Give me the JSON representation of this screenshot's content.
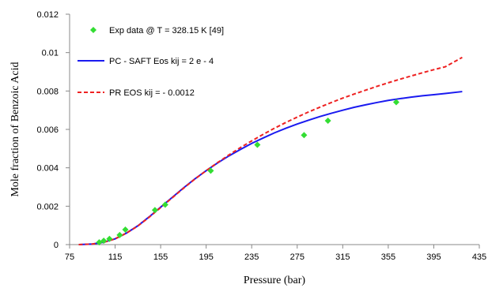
{
  "chart_data": {
    "type": "scatter",
    "title": "",
    "xlabel": "Pressure (bar)",
    "ylabel": "Mole fraction of Benzoic Acid",
    "xlim": [
      75,
      435
    ],
    "ylim": [
      0,
      0.012
    ],
    "x_ticks": [
      "75",
      "115",
      "155",
      "195",
      "235",
      "275",
      "315",
      "355",
      "395",
      "435"
    ],
    "y_ticks": [
      "0",
      "0.002",
      "0.004",
      "0.006",
      "0.008",
      "0.01",
      "0.012"
    ],
    "grid": false,
    "legend_position": "top-left",
    "series": [
      {
        "name": "Exp data @ T = 328.15 K [49]",
        "kind": "markers",
        "color": "#33dd33",
        "x": [
          101,
          105,
          110,
          119,
          124,
          150,
          159,
          199,
          240,
          281,
          302,
          362
        ],
        "y": [
          0.00012,
          0.0002,
          0.0003,
          0.0005,
          0.00078,
          0.0018,
          0.00208,
          0.00385,
          0.0052,
          0.0057,
          0.00645,
          0.00742
        ]
      },
      {
        "name": "PC - SAFT Eos kij = 2 e - 4",
        "kind": "line",
        "color": "#1a1af0",
        "x": [
          83,
          95,
          105,
          115,
          125,
          135,
          145,
          155,
          165,
          175,
          185,
          195,
          205,
          215,
          225,
          235,
          245,
          255,
          265,
          275,
          285,
          295,
          305,
          315,
          325,
          335,
          345,
          355,
          365,
          375,
          385,
          395,
          405,
          420
        ],
        "y": [
          0.0,
          3e-05,
          0.00012,
          0.0003,
          0.0006,
          0.00098,
          0.00145,
          0.00195,
          0.00245,
          0.00295,
          0.00342,
          0.00385,
          0.00425,
          0.00462,
          0.00495,
          0.00527,
          0.00555,
          0.00582,
          0.00606,
          0.00628,
          0.00648,
          0.00667,
          0.00684,
          0.007,
          0.00715,
          0.00728,
          0.0074,
          0.00751,
          0.0076,
          0.00768,
          0.00775,
          0.00781,
          0.00787,
          0.00797
        ]
      },
      {
        "name": "PR EOS kij = - 0.0012",
        "kind": "dashed-line",
        "color": "#ee2222",
        "x": [
          83,
          95,
          105,
          115,
          125,
          135,
          145,
          155,
          165,
          175,
          185,
          195,
          205,
          215,
          225,
          235,
          245,
          255,
          265,
          275,
          285,
          295,
          305,
          315,
          325,
          335,
          345,
          355,
          365,
          375,
          385,
          395,
          405,
          420
        ],
        "y": [
          0.0,
          3e-05,
          0.00012,
          0.0003,
          0.0006,
          0.00097,
          0.00143,
          0.00193,
          0.00243,
          0.00293,
          0.00341,
          0.00385,
          0.00427,
          0.00467,
          0.00505,
          0.0054,
          0.00574,
          0.00606,
          0.00636,
          0.00664,
          0.00691,
          0.00716,
          0.0074,
          0.00763,
          0.00784,
          0.00804,
          0.00824,
          0.00843,
          0.00861,
          0.00878,
          0.00895,
          0.00911,
          0.00926,
          0.00975
        ]
      }
    ]
  }
}
